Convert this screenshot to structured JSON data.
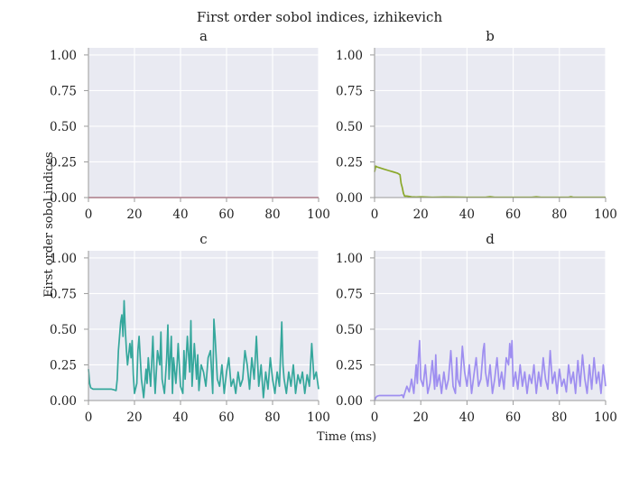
{
  "figure": {
    "title": "First order sobol indices, izhikevich",
    "xlabel": "Time (ms)",
    "ylabel": "First order sobol indices"
  },
  "chart_data": [
    {
      "type": "line",
      "title": "a",
      "xlim": [
        0,
        100
      ],
      "ylim": [
        0,
        1.05
      ],
      "xticks": [
        "0",
        "20",
        "40",
        "60",
        "80",
        "100"
      ],
      "yticks": [
        "0.00",
        "0.25",
        "0.50",
        "0.75",
        "1.00"
      ],
      "grid": true,
      "color": "#d97b93",
      "x": [
        0,
        100
      ],
      "y": [
        0.0,
        0.0
      ]
    },
    {
      "type": "line",
      "title": "b",
      "xlim": [
        0,
        100
      ],
      "ylim": [
        0,
        1.05
      ],
      "xticks": [
        "0",
        "20",
        "40",
        "60",
        "80",
        "100"
      ],
      "yticks": [
        "0.00",
        "0.25",
        "0.50",
        "0.75",
        "1.00"
      ],
      "grid": true,
      "color": "#8aa82a",
      "x": [
        0,
        0.5,
        1,
        2,
        4,
        6,
        8,
        10,
        10.5,
        11,
        11.5,
        12,
        12.5,
        13,
        14,
        16,
        18,
        20,
        25,
        30,
        40,
        48,
        50,
        52,
        60,
        68,
        70,
        72,
        80,
        84,
        85,
        86,
        90,
        95,
        100
      ],
      "y": [
        0.18,
        0.22,
        0.215,
        0.21,
        0.2,
        0.19,
        0.18,
        0.17,
        0.165,
        0.16,
        0.1,
        0.07,
        0.03,
        0.01,
        0.01,
        0.005,
        0.003,
        0.005,
        0.002,
        0.003,
        0.002,
        0.002,
        0.006,
        0.002,
        0.002,
        0.002,
        0.005,
        0.002,
        0.002,
        0.002,
        0.006,
        0.002,
        0.002,
        0.002,
        0.002
      ]
    },
    {
      "type": "line",
      "title": "c",
      "xlim": [
        0,
        100
      ],
      "ylim": [
        0,
        1.05
      ],
      "xticks": [
        "0",
        "20",
        "40",
        "60",
        "80",
        "100"
      ],
      "yticks": [
        "0.00",
        "0.25",
        "0.50",
        "0.75",
        "1.00"
      ],
      "grid": true,
      "color": "#35a79c",
      "x": [
        0,
        0.5,
        1,
        2,
        4,
        6,
        8,
        10,
        11,
        12,
        12.5,
        13,
        14,
        14.5,
        15,
        15.5,
        16,
        16.5,
        17,
        18,
        18.5,
        19,
        19.5,
        20,
        21,
        21.5,
        22,
        22.5,
        23,
        24,
        25,
        25.5,
        26,
        27,
        28,
        28.5,
        29,
        30,
        31,
        31.5,
        32,
        33,
        34,
        34.5,
        35,
        36,
        36.5,
        37,
        38,
        38.5,
        39,
        40,
        41,
        41.5,
        42,
        43,
        44,
        44.5,
        45,
        46,
        47,
        47.5,
        48,
        49,
        50,
        51,
        52,
        53,
        54,
        54.5,
        55,
        56,
        57,
        58,
        59,
        60,
        61,
        62,
        63,
        64,
        65,
        66,
        67,
        68,
        69,
        70,
        71,
        72,
        73,
        74,
        75,
        76,
        77,
        78,
        79,
        80,
        81,
        82,
        83,
        84,
        84.5,
        85,
        86,
        87,
        88,
        89,
        90,
        91,
        92,
        93,
        94,
        95,
        96,
        97,
        98,
        99,
        100
      ],
      "y": [
        0.22,
        0.12,
        0.09,
        0.08,
        0.08,
        0.08,
        0.08,
        0.08,
        0.075,
        0.07,
        0.15,
        0.35,
        0.55,
        0.6,
        0.45,
        0.7,
        0.5,
        0.35,
        0.25,
        0.4,
        0.3,
        0.42,
        0.18,
        0.05,
        0.12,
        0.35,
        0.45,
        0.3,
        0.15,
        0.02,
        0.22,
        0.12,
        0.3,
        0.1,
        0.45,
        0.2,
        0.05,
        0.35,
        0.25,
        0.48,
        0.15,
        0.05,
        0.3,
        0.53,
        0.15,
        0.45,
        0.05,
        0.3,
        0.12,
        0.25,
        0.4,
        0.1,
        0.05,
        0.35,
        0.15,
        0.45,
        0.2,
        0.56,
        0.1,
        0.4,
        0.15,
        0.32,
        0.07,
        0.25,
        0.2,
        0.1,
        0.3,
        0.35,
        0.05,
        0.57,
        0.45,
        0.15,
        0.1,
        0.25,
        0.05,
        0.2,
        0.3,
        0.1,
        0.15,
        0.05,
        0.2,
        0.1,
        0.15,
        0.35,
        0.25,
        0.08,
        0.3,
        0.15,
        0.45,
        0.1,
        0.25,
        0.02,
        0.2,
        0.08,
        0.3,
        0.15,
        0.05,
        0.2,
        0.1,
        0.55,
        0.25,
        0.15,
        0.05,
        0.2,
        0.1,
        0.25,
        0.05,
        0.18,
        0.12,
        0.2,
        0.05,
        0.18,
        0.1,
        0.4,
        0.15,
        0.2,
        0.08
      ]
    },
    {
      "type": "line",
      "title": "d",
      "xlim": [
        0,
        100
      ],
      "ylim": [
        0,
        1.05
      ],
      "xticks": [
        "0",
        "20",
        "40",
        "60",
        "80",
        "100"
      ],
      "yticks": [
        "0.00",
        "0.25",
        "0.50",
        "0.75",
        "1.00"
      ],
      "grid": true,
      "color": "#9e8ef0",
      "x": [
        0,
        0.5,
        1,
        2,
        4,
        6,
        8,
        10,
        11,
        12,
        12.5,
        13,
        14,
        15,
        16,
        17,
        18,
        18.5,
        19,
        19.5,
        20,
        21,
        22,
        23,
        24,
        25,
        26,
        26.5,
        27,
        28,
        29,
        30,
        31,
        32,
        33,
        34,
        35,
        35.5,
        36,
        37,
        38,
        39,
        40,
        41,
        42,
        43,
        44,
        45,
        46,
        47,
        47.5,
        48,
        49,
        50,
        51,
        52,
        53,
        54,
        55,
        56,
        57,
        58,
        58.5,
        59,
        59.5,
        60,
        61,
        62,
        63,
        64,
        65,
        66,
        67,
        68,
        69,
        70,
        71,
        72,
        73,
        74,
        75,
        76,
        77,
        78,
        79,
        80,
        81,
        82,
        83,
        84,
        85,
        86,
        87,
        88,
        89,
        90,
        91,
        92,
        93,
        94,
        95,
        96,
        97,
        98,
        99,
        100
      ],
      "y": [
        0.0,
        0.02,
        0.03,
        0.035,
        0.035,
        0.035,
        0.035,
        0.035,
        0.035,
        0.04,
        0.02,
        0.05,
        0.1,
        0.06,
        0.15,
        0.05,
        0.25,
        0.12,
        0.3,
        0.42,
        0.15,
        0.1,
        0.25,
        0.05,
        0.12,
        0.28,
        0.08,
        0.32,
        0.1,
        0.18,
        0.05,
        0.2,
        0.08,
        0.15,
        0.35,
        0.1,
        0.05,
        0.3,
        0.15,
        0.1,
        0.38,
        0.2,
        0.1,
        0.25,
        0.05,
        0.18,
        0.3,
        0.1,
        0.15,
        0.35,
        0.4,
        0.2,
        0.1,
        0.25,
        0.05,
        0.15,
        0.3,
        0.1,
        0.2,
        0.08,
        0.3,
        0.25,
        0.4,
        0.3,
        0.42,
        0.1,
        0.2,
        0.08,
        0.25,
        0.1,
        0.2,
        0.05,
        0.18,
        0.12,
        0.25,
        0.05,
        0.2,
        0.1,
        0.3,
        0.15,
        0.08,
        0.35,
        0.12,
        0.2,
        0.05,
        0.22,
        0.1,
        0.15,
        0.06,
        0.25,
        0.12,
        0.2,
        0.05,
        0.28,
        0.1,
        0.32,
        0.15,
        0.05,
        0.25,
        0.08,
        0.3,
        0.12,
        0.2,
        0.05,
        0.25,
        0.1
      ]
    }
  ]
}
